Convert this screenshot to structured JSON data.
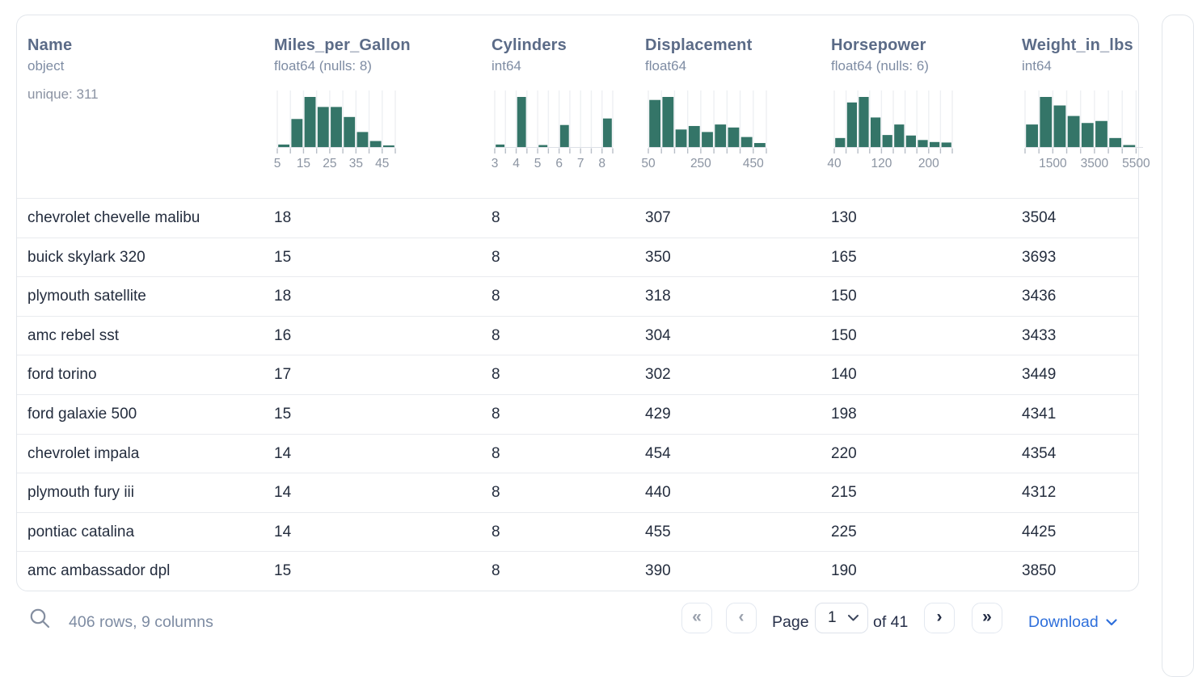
{
  "card": {
    "columns": [
      {
        "name": "Name",
        "type": "object",
        "extra": "unique: 311",
        "histogram": null
      },
      {
        "name": "Miles_per_Gallon",
        "type": "float64 (nulls: 8)",
        "histogram": {
          "units": 9,
          "bar_width": 1,
          "bar_positions": [
            0,
            1,
            2,
            3,
            4,
            5,
            6,
            7,
            8
          ],
          "heights": [
            0.05,
            0.56,
            1.0,
            0.8,
            0.8,
            0.6,
            0.3,
            0.12,
            0.03
          ],
          "tick_step": 1,
          "labels": [
            {
              "text": "5",
              "u": 0
            },
            {
              "text": "15",
              "u": 2
            },
            {
              "text": "25",
              "u": 4
            },
            {
              "text": "35",
              "u": 6
            },
            {
              "text": "45",
              "u": 8
            }
          ]
        }
      },
      {
        "name": "Cylinders",
        "type": "int64",
        "histogram": {
          "units": 5.5,
          "bar_width": 0.5,
          "bar_positions": [
            0,
            1,
            2,
            3,
            4,
            5
          ],
          "heights": [
            0.05,
            1.0,
            0.04,
            0.44,
            0,
            0.57
          ],
          "tick_step": 0.5,
          "labels": [
            {
              "text": "3",
              "u": 0
            },
            {
              "text": "4",
              "u": 1
            },
            {
              "text": "5",
              "u": 2
            },
            {
              "text": "6",
              "u": 3
            },
            {
              "text": "7",
              "u": 4
            },
            {
              "text": "8",
              "u": 5
            }
          ]
        }
      },
      {
        "name": "Displacement",
        "type": "float64",
        "histogram": {
          "units": 9,
          "bar_width": 1,
          "bar_positions": [
            0,
            1,
            2,
            3,
            4,
            5,
            6,
            7,
            8
          ],
          "heights": [
            0.94,
            1.0,
            0.35,
            0.42,
            0.3,
            0.45,
            0.39,
            0.2,
            0.08
          ],
          "tick_step": 1,
          "labels": [
            {
              "text": "50",
              "u": 0
            },
            {
              "text": "250",
              "u": 4
            },
            {
              "text": "450",
              "u": 8
            }
          ]
        }
      },
      {
        "name": "Horsepower",
        "type": "float64 (nulls: 6)",
        "histogram": {
          "units": 10,
          "bar_width": 1,
          "bar_positions": [
            0,
            1,
            2,
            3,
            4,
            5,
            6,
            7,
            8,
            9
          ],
          "heights": [
            0.18,
            0.89,
            1.0,
            0.59,
            0.24,
            0.45,
            0.23,
            0.14,
            0.1,
            0.09
          ],
          "tick_step": 1,
          "labels": [
            {
              "text": "40",
              "u": 0
            },
            {
              "text": "120",
              "u": 4
            },
            {
              "text": "200",
              "u": 8
            }
          ]
        }
      },
      {
        "name": "Weight_in_lbs",
        "type": "int64",
        "histogram": {
          "units": 8.5,
          "bar_width": 1,
          "bar_positions": [
            0,
            1,
            2,
            3,
            4,
            5,
            6,
            7
          ],
          "heights": [
            0.45,
            1.0,
            0.83,
            0.62,
            0.48,
            0.52,
            0.18,
            0.04
          ],
          "tick_step": 1,
          "labels": [
            {
              "text": "1500",
              "u": 2
            },
            {
              "text": "3500",
              "u": 5
            },
            {
              "text": "5500",
              "u": 8
            }
          ]
        }
      }
    ],
    "rows": [
      [
        "chevrolet chevelle malibu",
        "18",
        "8",
        "307",
        "130",
        "3504"
      ],
      [
        "buick skylark 320",
        "15",
        "8",
        "350",
        "165",
        "3693"
      ],
      [
        "plymouth satellite",
        "18",
        "8",
        "318",
        "150",
        "3436"
      ],
      [
        "amc rebel sst",
        "16",
        "8",
        "304",
        "150",
        "3433"
      ],
      [
        "ford torino",
        "17",
        "8",
        "302",
        "140",
        "3449"
      ],
      [
        "ford galaxie 500",
        "15",
        "8",
        "429",
        "198",
        "4341"
      ],
      [
        "chevrolet impala",
        "14",
        "8",
        "454",
        "220",
        "4354"
      ],
      [
        "plymouth fury iii",
        "14",
        "8",
        "440",
        "215",
        "4312"
      ],
      [
        "pontiac catalina",
        "14",
        "8",
        "455",
        "225",
        "4425"
      ],
      [
        "amc ambassador dpl",
        "15",
        "8",
        "390",
        "190",
        "3850"
      ]
    ]
  },
  "footer": {
    "summary": "406 rows, 9 columns",
    "search_icon": "magnifier",
    "pagination": {
      "first_icon": "«",
      "prev_icon": "‹",
      "next_icon": "›",
      "last_icon": "»",
      "page_label": "Page",
      "page_value": "1",
      "of_label": "of 41"
    },
    "download_label": "Download"
  },
  "colors": {
    "histogram_bar": "#347568",
    "histogram_grid": "#eef0f3",
    "histogram_tick": "#b9bfc8",
    "histogram_baseline": "#dce0e6",
    "histogram_label": "#8b94a2",
    "header_text": "#5b6b87",
    "type_text": "#7e8ca3",
    "row_text": "#242d3e",
    "accent_link": "#2e6fdb",
    "card_border": "#e2e6eb"
  }
}
